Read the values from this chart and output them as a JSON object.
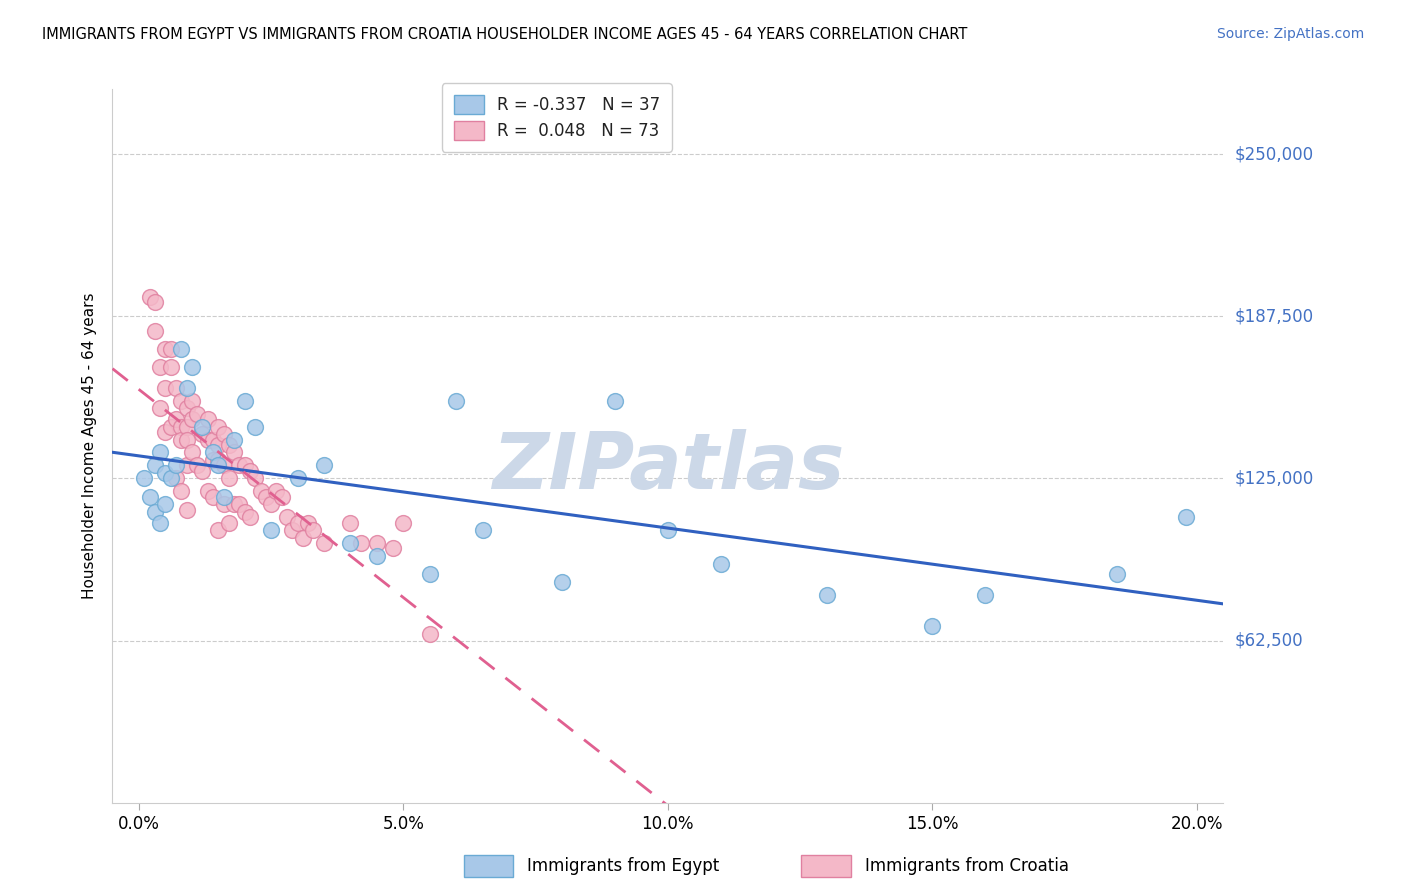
{
  "title": "IMMIGRANTS FROM EGYPT VS IMMIGRANTS FROM CROATIA HOUSEHOLDER INCOME AGES 45 - 64 YEARS CORRELATION CHART",
  "source": "Source: ZipAtlas.com",
  "ylabel": "Householder Income Ages 45 - 64 years",
  "xlabel_ticks": [
    "0.0%",
    "5.0%",
    "10.0%",
    "15.0%",
    "20.0%"
  ],
  "xlabel_vals": [
    0.0,
    0.05,
    0.1,
    0.15,
    0.2
  ],
  "ytick_labels": [
    "$62,500",
    "$125,000",
    "$187,500",
    "$250,000"
  ],
  "ytick_vals": [
    62500,
    125000,
    187500,
    250000
  ],
  "ymin": 0,
  "ymax": 275000,
  "xmin": -0.005,
  "xmax": 0.205,
  "egypt_color": "#a8c8e8",
  "egypt_edge": "#6aaad4",
  "croatia_color": "#f4b8c8",
  "croatia_edge": "#e080a0",
  "egypt_R": -0.337,
  "egypt_N": 37,
  "croatia_R": 0.048,
  "croatia_N": 73,
  "line_egypt_color": "#3060c0",
  "line_croatia_color": "#e06090",
  "watermark": "ZIPatlas",
  "watermark_color": "#ccd8e8",
  "legend_egypt_label": "R = -0.337   N = 37",
  "legend_croatia_label": "R =  0.048   N = 73",
  "bottom_legend_egypt": "Immigrants from Egypt",
  "bottom_legend_croatia": "Immigrants from Croatia",
  "egypt_x": [
    0.001,
    0.002,
    0.003,
    0.003,
    0.004,
    0.004,
    0.005,
    0.005,
    0.006,
    0.007,
    0.008,
    0.009,
    0.01,
    0.012,
    0.014,
    0.015,
    0.016,
    0.018,
    0.02,
    0.022,
    0.025,
    0.03,
    0.035,
    0.04,
    0.045,
    0.055,
    0.06,
    0.065,
    0.08,
    0.09,
    0.1,
    0.11,
    0.13,
    0.15,
    0.16,
    0.185,
    0.198
  ],
  "egypt_y": [
    125000,
    118000,
    130000,
    112000,
    108000,
    135000,
    127000,
    115000,
    125000,
    130000,
    175000,
    160000,
    168000,
    145000,
    135000,
    130000,
    118000,
    140000,
    155000,
    145000,
    105000,
    125000,
    130000,
    100000,
    95000,
    88000,
    155000,
    105000,
    85000,
    155000,
    105000,
    92000,
    80000,
    68000,
    80000,
    88000,
    110000
  ],
  "croatia_x": [
    0.002,
    0.003,
    0.003,
    0.004,
    0.004,
    0.005,
    0.005,
    0.005,
    0.006,
    0.006,
    0.006,
    0.007,
    0.007,
    0.007,
    0.008,
    0.008,
    0.008,
    0.008,
    0.009,
    0.009,
    0.009,
    0.009,
    0.009,
    0.01,
    0.01,
    0.01,
    0.011,
    0.011,
    0.012,
    0.012,
    0.013,
    0.013,
    0.013,
    0.014,
    0.014,
    0.014,
    0.015,
    0.015,
    0.015,
    0.015,
    0.016,
    0.016,
    0.016,
    0.017,
    0.017,
    0.017,
    0.018,
    0.018,
    0.019,
    0.019,
    0.02,
    0.02,
    0.021,
    0.021,
    0.022,
    0.023,
    0.024,
    0.025,
    0.026,
    0.027,
    0.028,
    0.029,
    0.03,
    0.031,
    0.032,
    0.033,
    0.035,
    0.04,
    0.042,
    0.045,
    0.048,
    0.05,
    0.055
  ],
  "croatia_y": [
    195000,
    193000,
    182000,
    168000,
    152000,
    175000,
    160000,
    143000,
    175000,
    168000,
    145000,
    160000,
    148000,
    125000,
    155000,
    145000,
    140000,
    120000,
    152000,
    145000,
    140000,
    130000,
    113000,
    155000,
    148000,
    135000,
    150000,
    130000,
    142000,
    128000,
    148000,
    140000,
    120000,
    140000,
    132000,
    118000,
    145000,
    138000,
    132000,
    105000,
    142000,
    130000,
    115000,
    138000,
    125000,
    108000,
    135000,
    115000,
    130000,
    115000,
    130000,
    112000,
    128000,
    110000,
    125000,
    120000,
    118000,
    115000,
    120000,
    118000,
    110000,
    105000,
    108000,
    102000,
    108000,
    105000,
    100000,
    108000,
    100000,
    100000,
    98000,
    108000,
    65000
  ]
}
